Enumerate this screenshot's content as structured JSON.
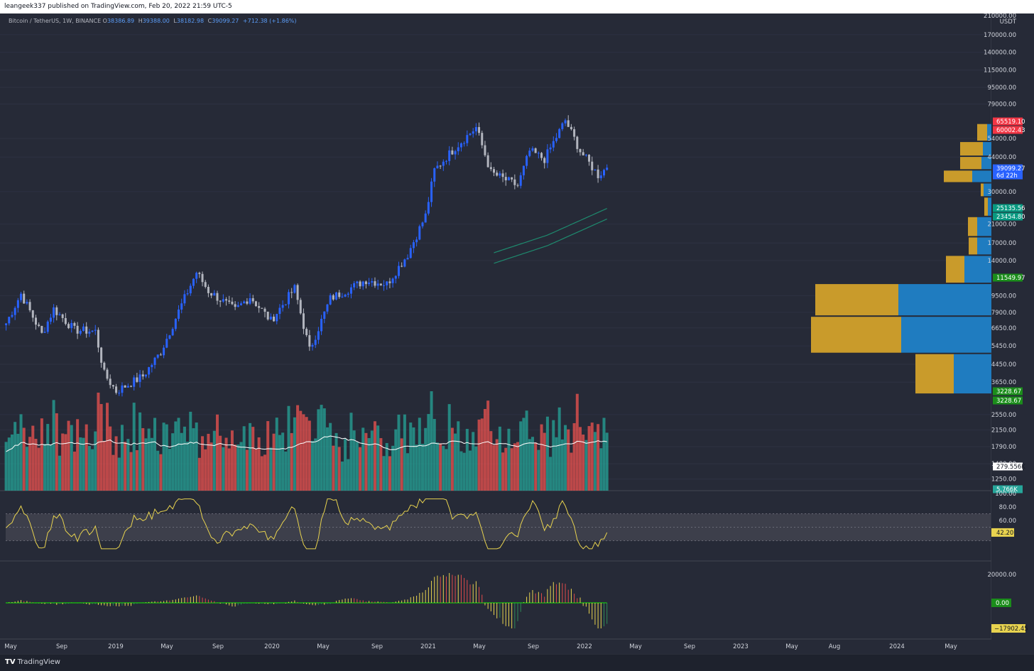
{
  "publish_line": "leangeek337 published on TradingView.com, Feb 20, 2022 21:59 UTC-5",
  "legend": {
    "symbol": "Bitcoin / TetherUS, 1W, BINANCE",
    "o_label": "O",
    "o": "38386.89",
    "h_label": "H",
    "h": "39388.00",
    "l_label": "L",
    "l": "38182.98",
    "c_label": "C",
    "c": "39099.27",
    "change": "+712.38 (+1.86%)"
  },
  "brand": "TradingView",
  "colors": {
    "background": "#262a37",
    "up": "#2962ff",
    "down": "#b2b5be",
    "vol_up": "#26a69a",
    "vol_down": "#ef5350",
    "rsi": "#e8d34f",
    "vp_up": "#1f7cc0",
    "vp_down": "#c99b2b",
    "grid": "#2e3242"
  },
  "price_axis": {
    "unit": "USDT",
    "top_tick": "210000.00",
    "ticks": [
      "170000.00",
      "140000.00",
      "115000.00",
      "95000.00",
      "79000.00",
      "54000.00",
      "44000.00",
      "30000.00",
      "21000.00",
      "17000.00",
      "14000.00",
      "9500.00",
      "7900.00",
      "6650.00",
      "5450.00",
      "4450.00",
      "3650.00",
      "2550.00",
      "2150.00",
      "1790.00",
      "1480.00",
      "1250.00"
    ],
    "labels": [
      {
        "text": "65519.10",
        "color": "#f23645"
      },
      {
        "text": "60002.43",
        "color": "#f23645"
      },
      {
        "text": "39099.27",
        "color": "#2962ff"
      },
      {
        "text": "6d 22h",
        "color": "#2962ff"
      },
      {
        "text": "25135.56",
        "color": "#089981"
      },
      {
        "text": "23454.80",
        "color": "#089981"
      },
      {
        "text": "11549.97",
        "color": "#1b8d1b"
      },
      {
        "text": "3228.67",
        "color": "#1b8d1b"
      },
      {
        "text": "3228.67",
        "color": "#1b8d1b"
      },
      {
        "text": "279.556K",
        "color": "#ffffff"
      },
      {
        "text": "5.766K",
        "color": "#26a69a"
      }
    ]
  },
  "rsi_axis": {
    "ticks": [
      "100.00",
      "80.00",
      "60.00"
    ],
    "label": "42.20"
  },
  "osc_axis": {
    "ticks": [
      "20000.00"
    ],
    "zero_label": "0.00",
    "value_label": "−17902.45"
  },
  "x_axis": {
    "ticks": [
      "May",
      "Sep",
      "2019",
      "May",
      "Sep",
      "2020",
      "May",
      "Sep",
      "2021",
      "May",
      "Sep",
      "2022",
      "May",
      "Sep",
      "2023",
      "May",
      "Aug",
      "2024",
      "May"
    ]
  },
  "chart_data": {
    "type": "candlestick",
    "symbol": "Bitcoin / TetherUS",
    "interval": "1W",
    "exchange": "BINANCE",
    "y_scale": "log",
    "ylim": [
      1100,
      210000
    ],
    "price_series": {
      "points": [
        [
          "2018-04-02",
          7000
        ],
        [
          "2018-05-07",
          9700
        ],
        [
          "2018-06-25",
          6200
        ],
        [
          "2018-07-23",
          8200
        ],
        [
          "2018-09-10",
          6500
        ],
        [
          "2018-10-29",
          6400
        ],
        [
          "2018-11-19",
          4000
        ],
        [
          "2018-12-17",
          3300
        ],
        [
          "2019-02-18",
          3900
        ],
        [
          "2019-04-01",
          5100
        ],
        [
          "2019-05-13",
          8000
        ],
        [
          "2019-06-24",
          12300
        ],
        [
          "2019-07-22",
          10000
        ],
        [
          "2019-09-23",
          8100
        ],
        [
          "2019-10-28",
          9400
        ],
        [
          "2019-12-16",
          7200
        ],
        [
          "2020-02-10",
          10300
        ],
        [
          "2020-03-16",
          5200
        ],
        [
          "2020-05-04",
          9200
        ],
        [
          "2020-07-27",
          11300
        ],
        [
          "2020-09-14",
          10800
        ],
        [
          "2020-11-02",
          15000
        ],
        [
          "2020-12-14",
          23000
        ],
        [
          "2021-01-04",
          38000
        ],
        [
          "2021-02-22",
          49000
        ],
        [
          "2021-04-12",
          61000
        ],
        [
          "2021-05-17",
          37000
        ],
        [
          "2021-07-19",
          32000
        ],
        [
          "2021-08-16",
          47000
        ],
        [
          "2021-09-20",
          43000
        ],
        [
          "2021-11-08",
          66000
        ],
        [
          "2021-12-13",
          47000
        ],
        [
          "2022-01-24",
          36000
        ],
        [
          "2022-02-14",
          39099.27
        ]
      ]
    },
    "ma_band": {
      "points": [
        [
          "2021-05-24",
          14400
        ],
        [
          "2021-09-27",
          17500
        ],
        [
          "2022-02-14",
          23500
        ]
      ]
    },
    "volume_profile": [
      {
        "price": 3900,
        "up": 53,
        "down": 54
      },
      {
        "price": 6450,
        "up": 127,
        "down": 127
      },
      {
        "price": 8900,
        "up": 131,
        "down": 117
      },
      {
        "price": 13300,
        "up": 38,
        "down": 26
      },
      {
        "price": 16600,
        "up": 20,
        "down": 12
      },
      {
        "price": 20000,
        "up": 20,
        "down": 13
      },
      {
        "price": 26000,
        "up": 5,
        "down": 5
      },
      {
        "price": 30800,
        "up": 11,
        "down": 4
      },
      {
        "price": 35500,
        "up": 27,
        "down": 40
      },
      {
        "price": 41000,
        "up": 14,
        "down": 30
      },
      {
        "price": 48000,
        "up": 12,
        "down": 32
      },
      {
        "price": 57000,
        "up": 6,
        "down": 14
      }
    ]
  }
}
